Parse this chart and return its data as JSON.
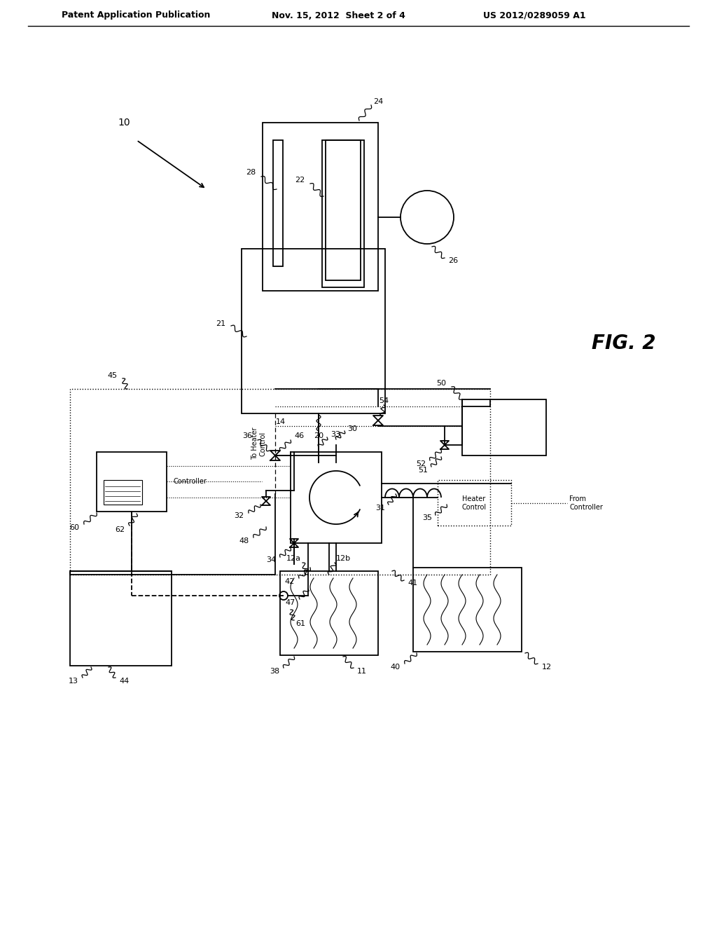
{
  "bg_color": "#ffffff",
  "header_left": "Patent Application Publication",
  "header_mid": "Nov. 15, 2012  Sheet 2 of 4",
  "header_right": "US 2012/0289059 A1",
  "fig_label": "FIG. 2",
  "lw": 1.3
}
